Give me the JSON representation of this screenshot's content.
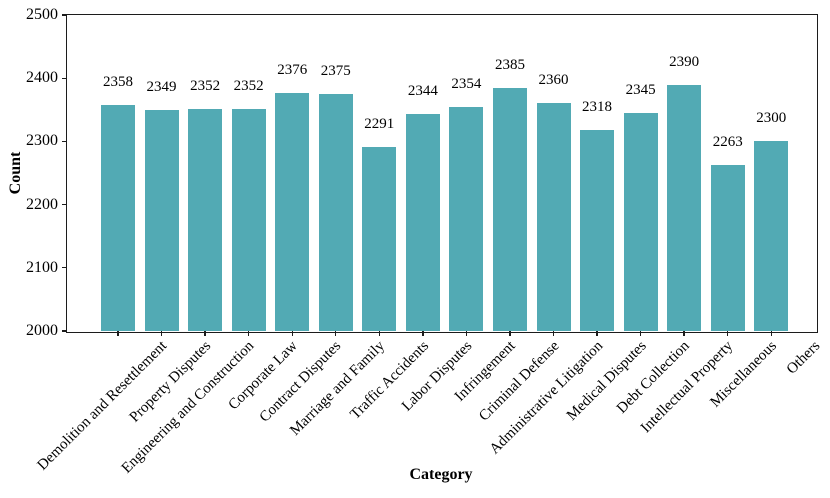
{
  "chart_data": {
    "type": "bar",
    "title": "",
    "xlabel": "Category",
    "ylabel": "Count",
    "categories": [
      "Demolition and Resettlement",
      "Property Disputes",
      "Engineering and Construction",
      "Corporate Law",
      "Contract Disputes",
      "Marriage and Family",
      "Traffic Accidents",
      "Labor Disputes",
      "Infringement",
      "Criminal Defense",
      "Administrative Litigation",
      "Medical Disputes",
      "Debt Collection",
      "Intellectual Property",
      "Miscellaneous",
      "Others"
    ],
    "values": [
      2358,
      2349,
      2352,
      2352,
      2376,
      2375,
      2291,
      2344,
      2354,
      2385,
      2360,
      2318,
      2345,
      2390,
      2263,
      2300
    ],
    "bar_value_labels": [
      "2358",
      "2349",
      "2352",
      "2352",
      "2376",
      "2375",
      "2291",
      "2344",
      "2354",
      "2385",
      "2360",
      "2318",
      "2345",
      "2390",
      "2263",
      "2300"
    ],
    "ylim": [
      2000,
      2500
    ],
    "y_ticks": [
      2000,
      2100,
      2200,
      2300,
      2400,
      2500
    ],
    "grid": false,
    "legend_position": "none",
    "bar_color": "#52aab4",
    "axis_color": "#1c1c1c",
    "text_color": "#000000",
    "background": "#ffffff"
  }
}
